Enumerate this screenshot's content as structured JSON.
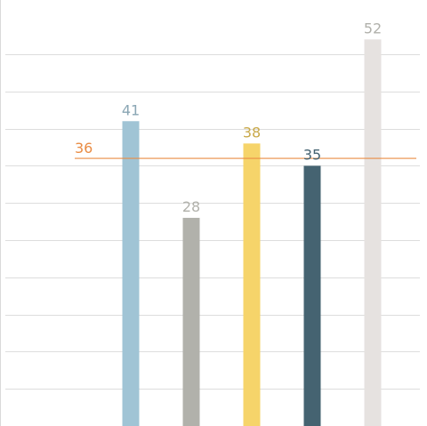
{
  "chart_data": {
    "type": "bar",
    "categories": [
      "",
      "",
      "",
      "",
      ""
    ],
    "values": [
      41,
      28,
      38,
      35,
      52
    ],
    "colors": [
      "#a0c4d5",
      "#b1b1ab",
      "#f6d46a",
      "#456371",
      "#e6e2e0"
    ],
    "label_colors": [
      "#8aa6b4",
      "#b1b1ab",
      "#c9a94a",
      "#456371",
      "#b1b1ab"
    ],
    "reference_line": {
      "value": 36,
      "label": "36",
      "color": "#e98c44"
    },
    "ylim": [
      0,
      57.3
    ],
    "y_gridlines": [
      5,
      10,
      15,
      20,
      25,
      30,
      35,
      40,
      45,
      50
    ],
    "grid": true,
    "legend": "none"
  }
}
